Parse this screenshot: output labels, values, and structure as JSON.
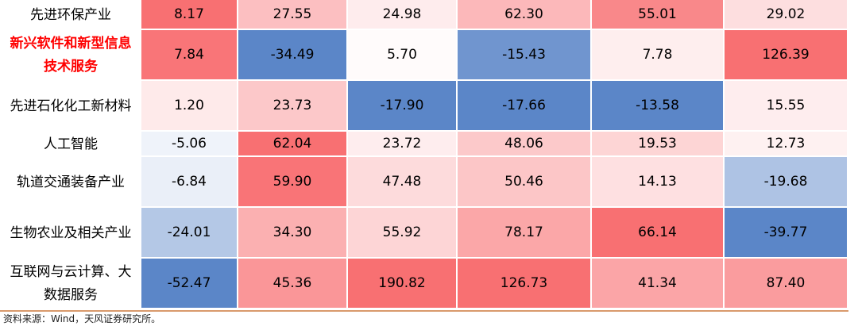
{
  "chart_data": {
    "type": "heatmap",
    "rows": [
      {
        "label": "先进环保产业",
        "highlight": false,
        "values": [
          8.17,
          27.55,
          24.98,
          62.3,
          55.01,
          29.02
        ],
        "display": [
          "8.17",
          "27.55",
          "24.98",
          "62.30",
          "55.01",
          "29.02"
        ]
      },
      {
        "label": "新兴软件和新型信息技术服务",
        "highlight": true,
        "values": [
          7.84,
          -34.49,
          5.7,
          -15.43,
          7.78,
          126.39
        ],
        "display": [
          "7.84",
          "-34.49",
          "5.70",
          "-15.43",
          "7.78",
          "126.39"
        ]
      },
      {
        "label": "先进石化化工新材料",
        "highlight": false,
        "values": [
          1.2,
          23.73,
          -17.9,
          -17.66,
          -13.58,
          15.55
        ],
        "display": [
          "1.20",
          "23.73",
          "-17.90",
          "-17.66",
          "-13.58",
          "15.55"
        ]
      },
      {
        "label": "人工智能",
        "highlight": false,
        "values": [
          -5.06,
          62.04,
          23.72,
          48.06,
          19.53,
          12.73
        ],
        "display": [
          "-5.06",
          "62.04",
          "23.72",
          "48.06",
          "19.53",
          "12.73"
        ]
      },
      {
        "label": "轨道交通装备产业",
        "highlight": false,
        "values": [
          -6.84,
          59.9,
          47.48,
          50.46,
          14.13,
          -19.68
        ],
        "display": [
          "-6.84",
          "59.90",
          "47.48",
          "50.46",
          "14.13",
          "-19.68"
        ]
      },
      {
        "label": "生物农业及相关产业",
        "highlight": false,
        "values": [
          -24.01,
          34.3,
          55.92,
          78.17,
          66.14,
          -39.77
        ],
        "display": [
          "-24.01",
          "34.30",
          "55.92",
          "78.17",
          "66.14",
          "-39.77"
        ]
      },
      {
        "label": "互联网与云计算、大数据服务",
        "highlight": false,
        "values": [
          -52.47,
          45.36,
          190.82,
          126.73,
          41.34,
          87.4
        ],
        "display": [
          "-52.47",
          "45.36",
          "190.82",
          "126.73",
          "41.34",
          "87.40"
        ]
      }
    ],
    "column_colors": {
      "negative_max": "#5b86c8",
      "positive_max": "#f8686b",
      "neutral": "#ffffff"
    }
  },
  "source": "资料来源：Wind，天风证券研究所。"
}
